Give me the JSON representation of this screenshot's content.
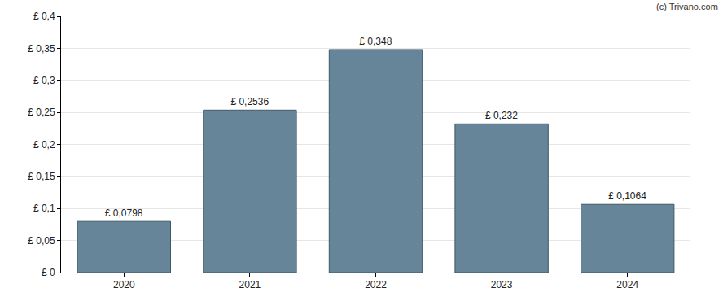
{
  "chart_data": {
    "type": "bar",
    "categories": [
      "2020",
      "2021",
      "2022",
      "2023",
      "2024"
    ],
    "values": [
      0.0798,
      0.2536,
      0.348,
      0.232,
      0.1064
    ],
    "value_labels": [
      "£ 0,0798",
      "£ 0,2536",
      "£ 0,348",
      "£ 0,232",
      "£ 0,1064"
    ],
    "data_labels": true,
    "color": "#668599",
    "ylim": [
      0,
      0.4
    ],
    "yticks": [
      {
        "value": 0,
        "label": "£ 0"
      },
      {
        "value": 0.05,
        "label": "£ 0,05"
      },
      {
        "value": 0.1,
        "label": "£ 0,1"
      },
      {
        "value": 0.15,
        "label": "£ 0,15"
      },
      {
        "value": 0.2,
        "label": "£ 0,2"
      },
      {
        "value": 0.25,
        "label": "£ 0,25"
      },
      {
        "value": 0.3,
        "label": "£ 0,3"
      },
      {
        "value": 0.35,
        "label": "£ 0,35"
      },
      {
        "value": 0.4,
        "label": "£ 0,4"
      }
    ],
    "grid": true,
    "annotations": [
      "(c) Trivano.com"
    ]
  }
}
